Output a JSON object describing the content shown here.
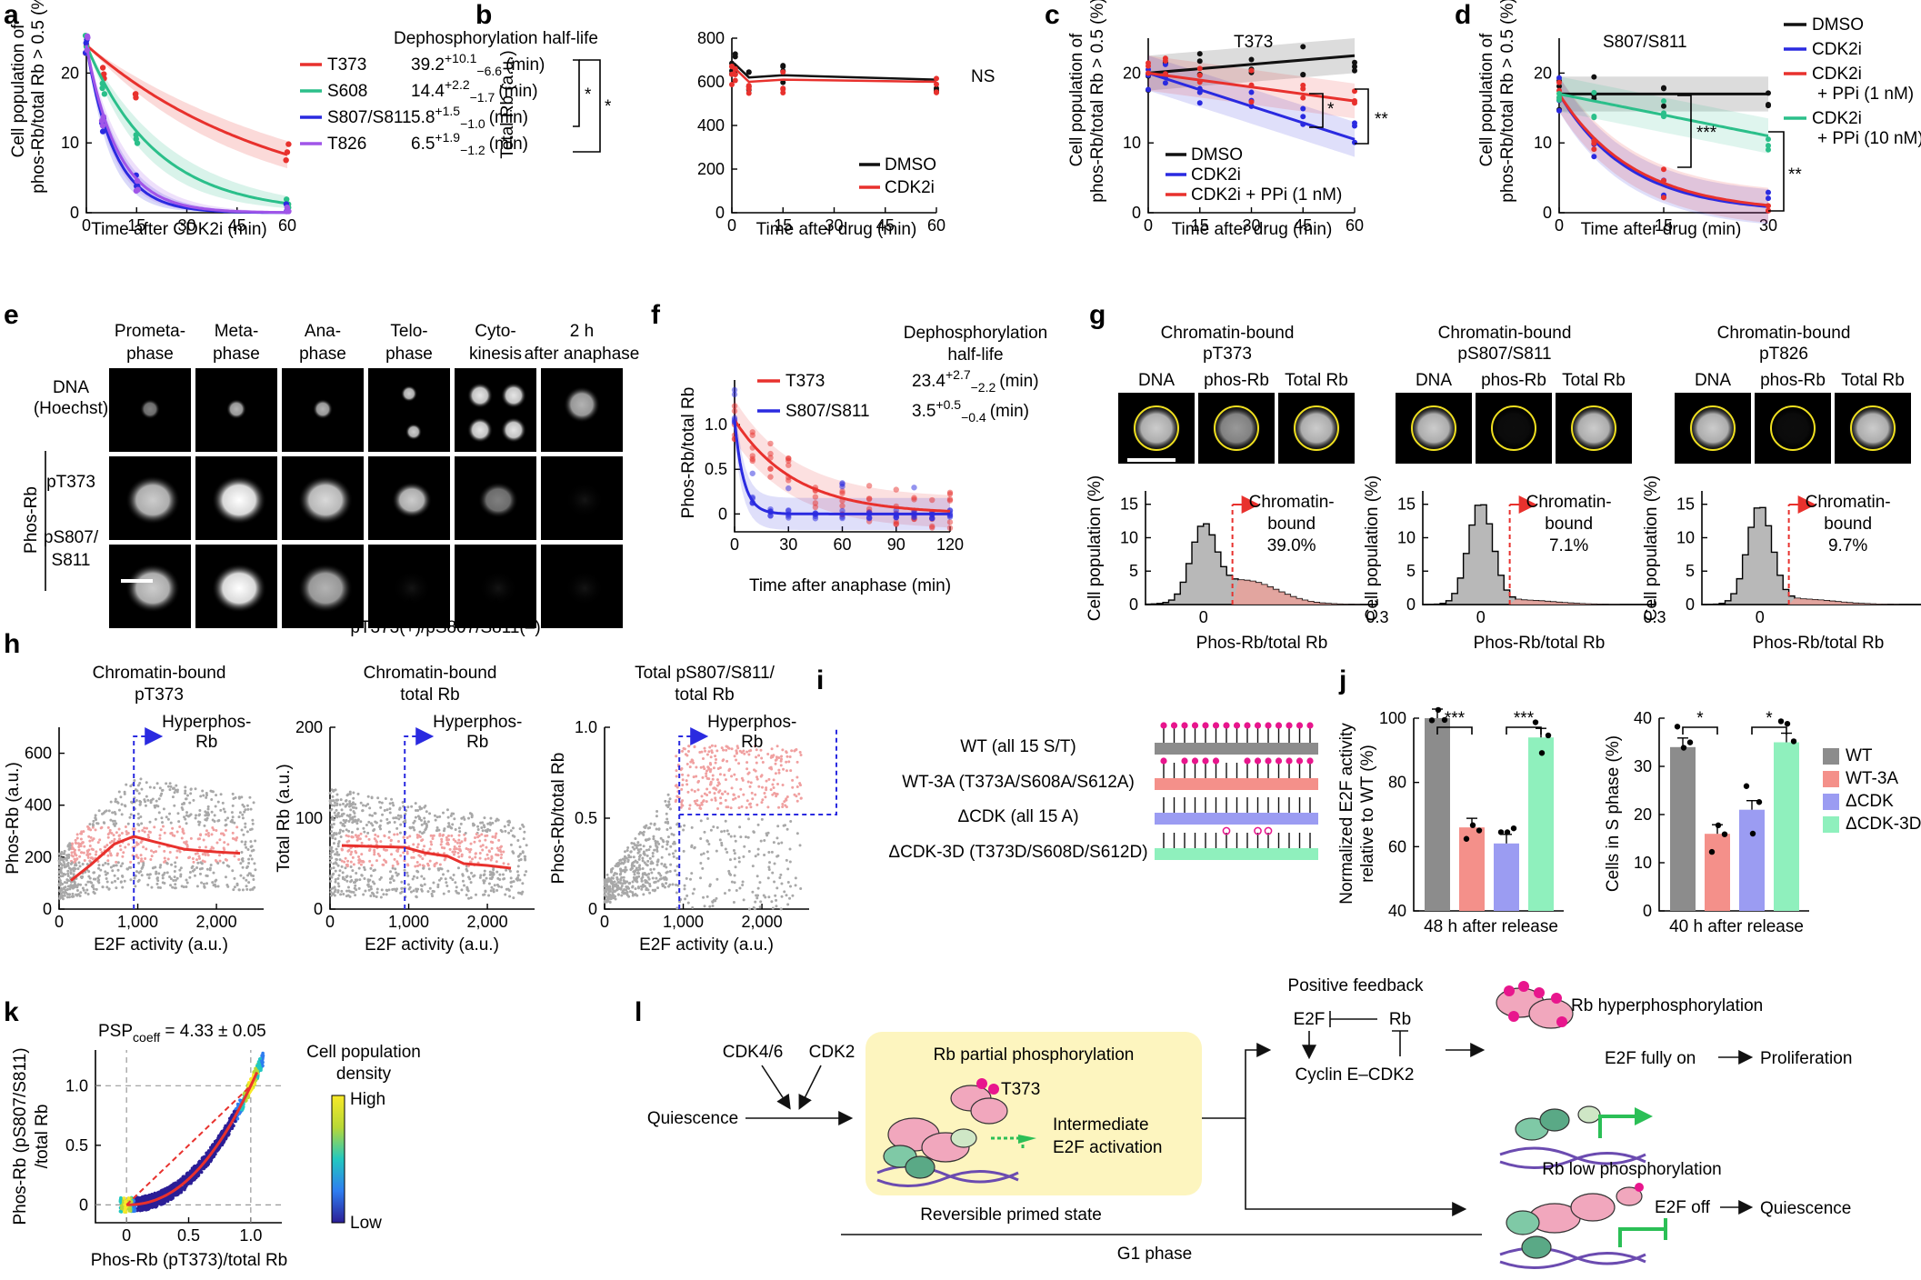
{
  "colors": {
    "red": "#e8312d",
    "green": "#2bbf8a",
    "blue": "#2a2ae0",
    "purple": "#a055e8",
    "black": "#111111",
    "grey": "#9a9a9a",
    "lightred": "#f2a3a0",
    "wt_bar": "#8c8c8c",
    "wt3a_bar": "#f4908a",
    "dcdk_bar": "#9b9cf2",
    "dcdk3d_bar": "#8ff0bd",
    "magenta": "#e8168d",
    "yellow_box": "#fdf5bf"
  },
  "panel_letters": [
    "a",
    "b",
    "c",
    "d",
    "e",
    "f",
    "g",
    "h",
    "i",
    "j",
    "k",
    "l"
  ],
  "chart_data": [
    {
      "id": "a",
      "type": "line",
      "title": "Dephosphorylation half-life",
      "xlabel": "Time after CDK2i (min)",
      "ylabel": "Cell population of phos-Rb/total Rb > 0.5 (%)",
      "xlim": [
        0,
        60
      ],
      "ylim": [
        0,
        25
      ],
      "xticks": [
        "0",
        "15",
        "30",
        "45",
        "60"
      ],
      "yticks": [
        "0",
        "10",
        "20"
      ],
      "series": [
        {
          "name": "T373",
          "halflife": "39.2",
          "sup": "+10.1",
          "sub": "−6.6",
          "x": [
            0,
            5,
            15,
            60
          ],
          "y": [
            24,
            20.5,
            16.5,
            8.5
          ]
        },
        {
          "name": "S608",
          "halflife": "14.4",
          "sup": "+2.2",
          "sub": "−1.7",
          "x": [
            0,
            5,
            15,
            60
          ],
          "y": [
            24,
            18,
            11,
            2
          ]
        },
        {
          "name": "S807/S811",
          "halflife": "5.8",
          "sup": "+1.5",
          "sub": "−1.0",
          "x": [
            0,
            5,
            15,
            60
          ],
          "y": [
            24,
            13,
            4,
            0.5
          ]
        },
        {
          "name": "T826",
          "halflife": "6.5",
          "sup": "+1.9",
          "sub": "−1.2",
          "x": [
            0,
            5,
            15,
            60
          ],
          "y": [
            24,
            13,
            4,
            0.5
          ]
        }
      ],
      "unit": "(min)",
      "significance": [
        "*",
        "*"
      ]
    },
    {
      "id": "b",
      "type": "line",
      "xlabel": "Time after drug (min)",
      "ylabel": "Total Rb (a.u.)",
      "xlim": [
        0,
        60
      ],
      "ylim": [
        0,
        800
      ],
      "xticks": [
        "0",
        "15",
        "30",
        "45",
        "60"
      ],
      "yticks": [
        "0",
        "200",
        "400",
        "600",
        "800"
      ],
      "series": [
        {
          "name": "DMSO",
          "x": [
            0,
            1,
            5,
            15,
            60
          ],
          "y": [
            640,
            680,
            620,
            630,
            610
          ]
        },
        {
          "name": "CDK2i",
          "x": [
            0,
            1,
            5,
            15,
            60
          ],
          "y": [
            630,
            660,
            600,
            610,
            600
          ]
        }
      ],
      "annotation": "NS"
    },
    {
      "id": "c",
      "type": "line",
      "title": "T373",
      "xlabel": "Time after drug (min)",
      "ylabel": "Cell population of phos-Rb/total Rb > 0.5 (%)",
      "xlim": [
        0,
        60
      ],
      "ylim": [
        0,
        25
      ],
      "xticks": [
        "0",
        "15",
        "30",
        "45",
        "60"
      ],
      "yticks": [
        "0",
        "10",
        "20"
      ],
      "series": [
        {
          "name": "DMSO",
          "x": [
            0,
            60
          ],
          "y": [
            20,
            22.5
          ]
        },
        {
          "name": "CDK2i",
          "x": [
            0,
            60
          ],
          "y": [
            20,
            10.5
          ]
        },
        {
          "name": "CDK2i + PPi (1 nM)",
          "x": [
            0,
            60
          ],
          "y": [
            20,
            16
          ]
        }
      ],
      "significance": [
        "*",
        "**"
      ]
    },
    {
      "id": "d",
      "type": "line",
      "title": "S807/S811",
      "xlabel": "Time after drug (min)",
      "ylabel": "Cell population of phos-Rb/total Rb > 0.5 (%)",
      "xlim": [
        0,
        30
      ],
      "ylim": [
        0,
        25
      ],
      "xticks": [
        "0",
        "15",
        "30"
      ],
      "yticks": [
        "0",
        "10",
        "20"
      ],
      "series": [
        {
          "name": "DMSO",
          "x": [
            0,
            30
          ],
          "y": [
            17,
            17
          ]
        },
        {
          "name": "CDK2i",
          "x": [
            0,
            5,
            15,
            30
          ],
          "y": [
            17,
            12,
            5,
            0.5
          ]
        },
        {
          "name": "CDK2i + PPi (1 nM)",
          "x": [
            0,
            5,
            15,
            30
          ],
          "y": [
            17,
            12.5,
            5.5,
            1
          ]
        },
        {
          "name": "CDK2i + PPi (10 nM)",
          "x": [
            0,
            30
          ],
          "y": [
            17,
            11
          ]
        }
      ],
      "significance": [
        "***",
        "**"
      ]
    },
    {
      "id": "f",
      "type": "line",
      "title": "Dephosphorylation half-life",
      "xlabel": "Time after anaphase (min)",
      "ylabel": "Phos-Rb/total Rb",
      "xlim": [
        0,
        120
      ],
      "ylim": [
        -0.2,
        1.5
      ],
      "xticks": [
        "0",
        "30",
        "60",
        "90",
        "120"
      ],
      "yticks": [
        "0",
        "0.5",
        "1.0"
      ],
      "series": [
        {
          "name": "T373",
          "halflife": "23.4",
          "sup": "+2.7",
          "sub": "−2.2"
        },
        {
          "name": "S807/S811",
          "halflife": "3.5",
          "sup": "+0.5",
          "sub": "−0.4"
        }
      ],
      "unit": "(min)"
    },
    {
      "id": "g",
      "type": "bar",
      "xlabel": "Phos-Rb/total Rb",
      "ylabel": "Cell population (%)",
      "xticks": [
        "0",
        "0.3"
      ],
      "yticks": [
        "0",
        "5",
        "10",
        "15"
      ],
      "subpanels": [
        {
          "title": "Chromatin-bound pT373",
          "label": "Chromatin-bound",
          "percent": "39.0%"
        },
        {
          "title": "Chromatin-bound pS807/S811",
          "label": "Chromatin-bound",
          "percent": "7.1%"
        },
        {
          "title": "Chromatin-bound pT826",
          "label": "Chromatin-bound",
          "percent": "9.7%"
        }
      ],
      "image_labels": [
        "DNA",
        "phos-Rb",
        "Total Rb"
      ]
    },
    {
      "id": "h",
      "type": "scatter",
      "xlabel": "E2F activity (a.u.)",
      "subpanels": [
        {
          "title": "Chromatin-bound pT373",
          "ylabel": "Phos-Rb (a.u.)",
          "yticks": [
            "0",
            "200",
            "400",
            "600"
          ],
          "ylim": [
            0,
            700
          ],
          "annotation": "Hyperphos-Rb"
        },
        {
          "title": "Chromatin-bound total Rb",
          "ylabel": "Total Rb (a.u.)",
          "yticks": [
            "0",
            "100",
            "200"
          ],
          "ylim": [
            0,
            200
          ],
          "annotation": "Hyperphos-Rb"
        },
        {
          "title": "Total pS807/S811/ total Rb",
          "ylabel": "Phos-Rb/total Rb",
          "yticks": [
            "0",
            "0.5",
            "1.0"
          ],
          "ylim": [
            0,
            1.0
          ],
          "annotation": "Hyperphos-Rb"
        }
      ],
      "xticks": [
        "0",
        "1,000",
        "2,000"
      ]
    },
    {
      "id": "j",
      "type": "bar",
      "subpanels": [
        {
          "ylabel": "Normalized E2F activity relative to WT (%)",
          "xlabel": "48 h after release",
          "ylim": [
            40,
            100
          ],
          "yticks": [
            "40",
            "60",
            "80",
            "100"
          ],
          "categories": [
            "WT",
            "WT-3A",
            "ΔCDK",
            "ΔCDK-3D"
          ],
          "values": [
            100,
            66,
            61,
            94
          ],
          "significance": [
            "***",
            "***"
          ]
        },
        {
          "ylabel": "Cells in S phase (%)",
          "xlabel": "40 h after release",
          "ylim": [
            0,
            40
          ],
          "yticks": [
            "0",
            "10",
            "20",
            "30",
            "40"
          ],
          "categories": [
            "WT",
            "WT-3A",
            "ΔCDK",
            "ΔCDK-3D"
          ],
          "values": [
            34,
            16,
            21,
            35
          ],
          "significance": [
            "*",
            "*"
          ]
        }
      ],
      "legend": [
        "WT",
        "WT-3A",
        "ΔCDK",
        "ΔCDK-3D"
      ]
    },
    {
      "id": "k",
      "type": "scatter",
      "title_main": "PSP",
      "title_sub": "coeff",
      "title_rest": " = 4.33 ± 0.05",
      "xlabel": "Phos-Rb (pT373)/total Rb",
      "ylabel": "Phos-Rb (pS807/S811) /total Rb",
      "xticks": [
        "0",
        "0.5",
        "1.0"
      ],
      "yticks": [
        "0",
        "0.5",
        "1.0"
      ],
      "colorbar": {
        "title": "Cell population density",
        "high": "High",
        "low": "Low"
      }
    }
  ],
  "panel_e": {
    "columns": [
      "Prometa- phase",
      "Meta- phase",
      "Ana- phase",
      "Telo- phase",
      "Cyto- kinesis",
      "2 h after anaphase"
    ],
    "rows": [
      "DNA (Hoechst)",
      "pT373",
      "pS807/ S811"
    ],
    "group_label": "Phos-Rb",
    "footnote": "pT373(+)/pS807/S811(–)",
    "star": "*"
  },
  "panel_i": {
    "constructs": [
      "WT (all 15 S/T)",
      "WT-3A (T373A/S608A/S612A)",
      "ΔCDK (all 15 A)",
      "ΔCDK-3D (T373D/S608D/S612D)"
    ]
  },
  "panel_l": {
    "quiescence_in": "Quiescence",
    "cdk46": "CDK4/6",
    "cdk2": "CDK2",
    "box_title": "Rb partial phosphorylation",
    "t373": "T373",
    "intermediate": "Intermediate E2F activation",
    "reversible": "Reversible primed state",
    "g1": "G1 phase",
    "positive_feedback": "Positive feedback",
    "e2f": "E2F",
    "rb": "Rb",
    "cyclin": "Cyclin E–CDK2",
    "hyper": "Rb hyperphosphorylation",
    "e2f_on": "E2F fully on",
    "proliferation": "Proliferation",
    "low": "Rb low phosphorylation",
    "e2f_off": "E2F off",
    "quiescence_out": "Quiescence"
  }
}
